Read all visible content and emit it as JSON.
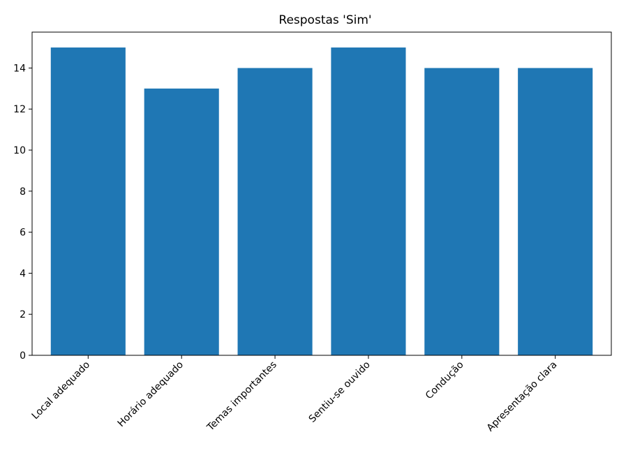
{
  "chart_data": {
    "type": "bar",
    "title": "Respostas 'Sim'",
    "xlabel": "",
    "ylabel": "",
    "categories": [
      "Local adequado",
      "Horário adequado",
      "Temas importantes",
      "Sentiu-se ouvido",
      "Condução",
      "Apresentação clara"
    ],
    "values": [
      15,
      13,
      14,
      15,
      14,
      14
    ],
    "ylim": [
      0,
      15.75
    ],
    "yticks": [
      0,
      2,
      4,
      6,
      8,
      10,
      12,
      14
    ],
    "grid": false,
    "legend": "none",
    "bar_color": "#1f77b4",
    "xtick_rotation": -45
  }
}
